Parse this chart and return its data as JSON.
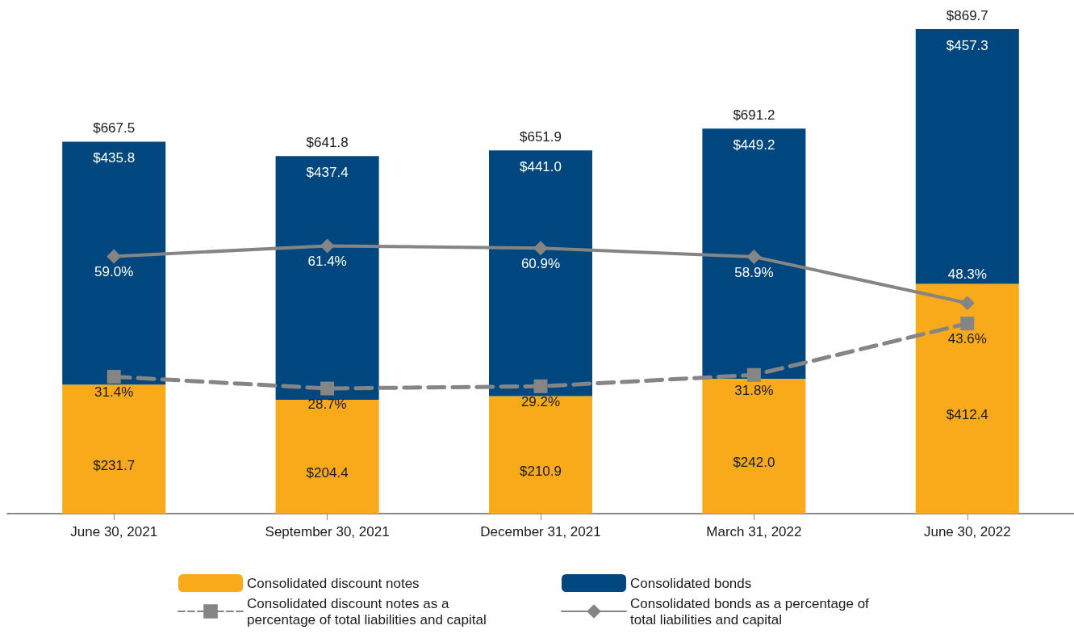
{
  "chart_data": {
    "type": "bar",
    "stacked": true,
    "categories": [
      "June 30, 2021",
      "September 30, 2021",
      "December 31, 2021",
      "March 31, 2022",
      "June 30, 2022"
    ],
    "series": [
      {
        "name": "Consolidated discount notes",
        "color": "#f9aa1a",
        "values": [
          231.7,
          204.4,
          210.9,
          242.0,
          412.4
        ],
        "value_labels": [
          "$231.7",
          "$204.4",
          "$210.9",
          "$242.0",
          "$412.4"
        ]
      },
      {
        "name": "Consolidated bonds",
        "color": "#00477f",
        "values": [
          435.8,
          437.4,
          441.0,
          449.2,
          457.3
        ],
        "value_labels": [
          "$435.8",
          "$437.4",
          "$441.0",
          "$449.2",
          "$457.3"
        ]
      },
      {
        "name": "Consolidated discount notes as a percentage of total liabilities and capital",
        "type": "line",
        "axis": "y2",
        "color": "#858585",
        "marker": "square",
        "line_style": "dashed",
        "values": [
          31.4,
          28.7,
          29.2,
          31.8,
          43.6
        ],
        "value_labels": [
          "31.4%",
          "28.7%",
          "29.2%",
          "31.8%",
          "43.6%"
        ]
      },
      {
        "name": "Consolidated bonds as a percentage of total liabilities and capital",
        "type": "line",
        "axis": "y2",
        "color": "#858585",
        "marker": "diamond",
        "line_style": "solid",
        "values": [
          59.0,
          61.4,
          60.9,
          58.9,
          48.3
        ],
        "value_labels": [
          "59.0%",
          "61.4%",
          "60.9%",
          "58.9%",
          "48.3%"
        ]
      }
    ],
    "totals": [
      "$667.5",
      "$641.8",
      "$651.9",
      "$691.2",
      "$869.7"
    ],
    "tick_labels": "x",
    "legend": "bottom"
  }
}
